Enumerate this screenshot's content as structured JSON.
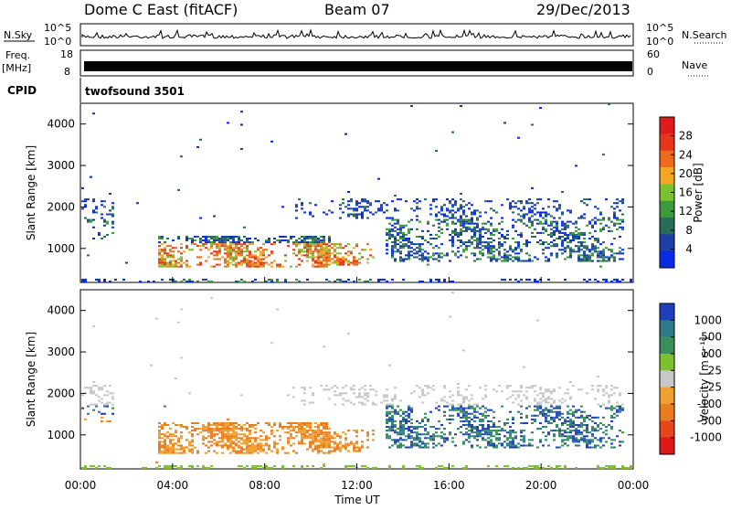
{
  "header": {
    "station": "Dome C East (fitACF)",
    "beam": "Beam 07",
    "date": "29/Dec/2013"
  },
  "panels": {
    "nsky_label": "N.Sky",
    "nsky_ticks": [
      "10^5",
      "10^0"
    ],
    "nsearch_label": "N.Search",
    "nsearch_ticks": [
      "10^5",
      "10^0"
    ],
    "freq_label": "Freq.",
    "freq_unit": "[MHz]",
    "freq_ticks": [
      "18",
      "8"
    ],
    "nave_label": "Nave",
    "nave_ticks": [
      "60",
      "0"
    ],
    "cpid_label": "CPID",
    "cpid_text": "twofsound 3501"
  },
  "chart_data": [
    {
      "type": "heatmap",
      "title": "",
      "ylabel": "Slant Range [km]",
      "xlabel": "",
      "xlim": [
        "00:00",
        "00:00"
      ],
      "ylim": [
        180,
        4500
      ],
      "yticks": [
        1000,
        2000,
        3000,
        4000
      ],
      "colorbar": {
        "label": "Power [dB]",
        "ticks": [
          4,
          8,
          12,
          16,
          20,
          24,
          28
        ],
        "colors": [
          "#0a2be6",
          "#1d3fa8",
          "#2b6b5a",
          "#3c9a3c",
          "#7cc22e",
          "#f5a623",
          "#ef6a1c",
          "#e8351c",
          "#dd1c1c"
        ]
      }
    },
    {
      "type": "heatmap",
      "title": "",
      "ylabel": "Slant Range [km]",
      "xlabel": "Time UT",
      "xticks": [
        "00:00",
        "04:00",
        "08:00",
        "12:00",
        "16:00",
        "20:00",
        "00:00"
      ],
      "ylim": [
        180,
        4500
      ],
      "yticks": [
        1000,
        2000,
        3000,
        4000
      ],
      "colorbar": {
        "label": "Velocity [m s⁻¹]",
        "ticks": [
          "1000",
          "500",
          "100",
          "25",
          "-25",
          "-100",
          "-500",
          "-1000"
        ],
        "colors": [
          "#1f3fbf",
          "#2f7a8a",
          "#3c8f5a",
          "#7cc22e",
          "#c8c8c8",
          "#f0a030",
          "#ec7d1e",
          "#e8451c",
          "#e01818"
        ]
      }
    }
  ]
}
